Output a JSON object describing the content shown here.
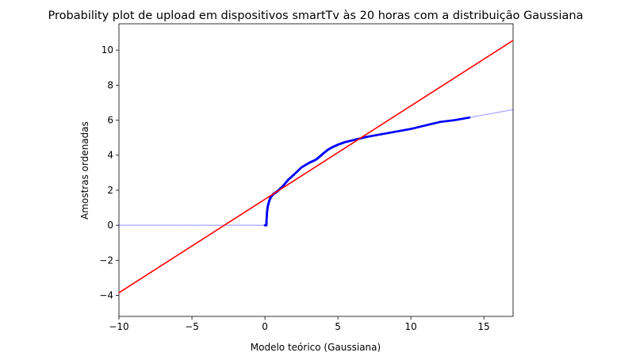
{
  "chart_data": {
    "type": "scatter",
    "title": "Probability plot de upload em dispositivos smartTv às 20 horas com a distribuição Gaussiana",
    "xlabel": "Modelo teórico (Gaussiana)",
    "ylabel": "Amostras ordenadas",
    "xlim": [
      -10,
      17
    ],
    "ylim": [
      -5.2,
      11.5
    ],
    "xticks": [
      -10,
      -5,
      0,
      5,
      10,
      15
    ],
    "xtick_labels": [
      "−10",
      "−5",
      "0",
      "5",
      "10",
      "15"
    ],
    "yticks": [
      -4,
      -2,
      0,
      2,
      4,
      6,
      8,
      10
    ],
    "ytick_labels": [
      "−4",
      "−2",
      "0",
      "2",
      "4",
      "6",
      "8",
      "10"
    ],
    "grid": false,
    "colors": {
      "points": "#0000ff",
      "fit_line": "#ff0000"
    },
    "series": [
      {
        "kind": "points",
        "points": [
          [
            -10,
            0.0
          ],
          [
            -9,
            0.0
          ],
          [
            -8,
            0.0
          ],
          [
            -7,
            0.0
          ],
          [
            -6,
            0.0
          ],
          [
            -5,
            0.0
          ],
          [
            -4,
            0.0
          ],
          [
            -3,
            0.0
          ],
          [
            -2,
            0.0
          ],
          [
            -1,
            0.0
          ],
          [
            0,
            0.0
          ],
          [
            0.1,
            0.0
          ],
          [
            0.12,
            0.4
          ],
          [
            0.15,
            0.8
          ],
          [
            0.2,
            1.1
          ],
          [
            0.3,
            1.4
          ],
          [
            0.4,
            1.6
          ],
          [
            0.6,
            1.8
          ],
          [
            0.8,
            1.9
          ],
          [
            1.0,
            2.05
          ],
          [
            1.3,
            2.3
          ],
          [
            1.6,
            2.6
          ],
          [
            2.0,
            2.9
          ],
          [
            2.5,
            3.3
          ],
          [
            3.0,
            3.55
          ],
          [
            3.5,
            3.75
          ],
          [
            3.8,
            3.95
          ],
          [
            4.0,
            4.1
          ],
          [
            4.3,
            4.3
          ],
          [
            4.6,
            4.45
          ],
          [
            5.0,
            4.6
          ],
          [
            5.5,
            4.75
          ],
          [
            6.0,
            4.85
          ],
          [
            6.5,
            4.95
          ],
          [
            7.0,
            5.05
          ],
          [
            8.0,
            5.2
          ],
          [
            9.0,
            5.35
          ],
          [
            10.0,
            5.5
          ],
          [
            11.0,
            5.7
          ],
          [
            12.0,
            5.9
          ],
          [
            13.0,
            6.0
          ],
          [
            14.0,
            6.15
          ],
          [
            15.0,
            6.3
          ],
          [
            16.0,
            6.45
          ],
          [
            17.0,
            6.6
          ]
        ]
      },
      {
        "kind": "fit_line",
        "points": [
          [
            -10,
            -3.85
          ],
          [
            17,
            10.55
          ]
        ]
      }
    ]
  }
}
